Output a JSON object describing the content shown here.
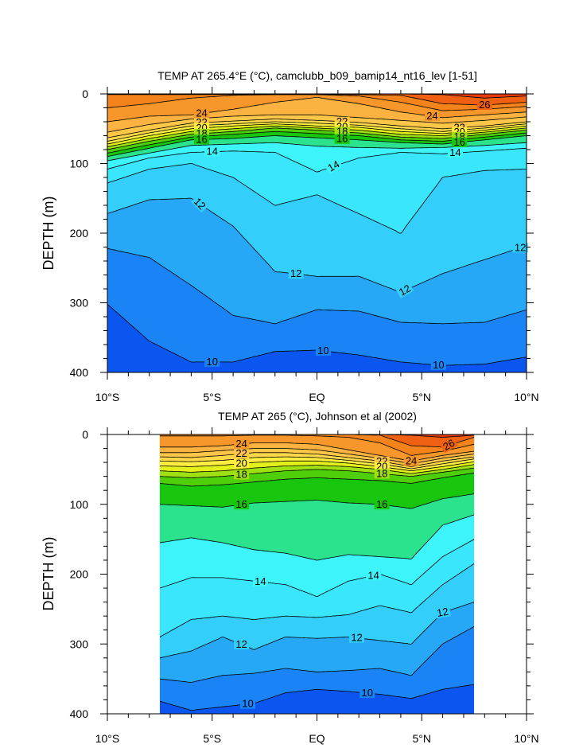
{
  "chart_data": [
    {
      "type": "contour",
      "title": "TEMP AT 265.4°E (°C), camclubb_b09_bamip14_nt16_lev [1-51]",
      "ylabel": "DEPTH (m)",
      "xlabel": "",
      "x_ticks": [
        "10°S",
        "5°S",
        "EQ",
        "5°N",
        "10°N"
      ],
      "y_ticks": [
        "0",
        "100",
        "200",
        "300",
        "400"
      ],
      "xlim": [
        -10,
        10
      ],
      "ylim": [
        0,
        400
      ],
      "y_reversed": true,
      "data_x_range": [
        -10,
        10
      ],
      "contour_labels": [
        "24",
        "22",
        "20",
        "18",
        "16",
        "14",
        "22",
        "20",
        "18",
        "16",
        "24",
        "26",
        "22",
        "20",
        "18",
        "16",
        "14",
        "14",
        "12",
        "12",
        "12",
        "12",
        "10",
        "10",
        "10"
      ],
      "isotherms": [
        {
          "level": 10,
          "x": [
            -10,
            -8,
            -6,
            -4,
            -2,
            0,
            2,
            4,
            6,
            8,
            10
          ],
          "depth": [
            302,
            355,
            385,
            385,
            370,
            368,
            375,
            385,
            390,
            388,
            378
          ]
        },
        {
          "level": 11,
          "x": [
            -10,
            -8,
            -6,
            -4,
            -2,
            0,
            2,
            4,
            6,
            8,
            10
          ],
          "depth": [
            222,
            235,
            275,
            318,
            330,
            310,
            312,
            328,
            330,
            328,
            310
          ]
        },
        {
          "level": 12,
          "x": [
            -10,
            -8,
            -6,
            -4,
            -2,
            0,
            2,
            4,
            6,
            8,
            10
          ],
          "depth": [
            172,
            152,
            150,
            190,
            255,
            262,
            262,
            285,
            258,
            238,
            218
          ]
        },
        {
          "level": 13,
          "x": [
            -10,
            -8,
            -6,
            -4,
            -2,
            0,
            2,
            4,
            6,
            8,
            10
          ],
          "depth": [
            128,
            108,
            100,
            120,
            160,
            145,
            172,
            200,
            120,
            110,
            108
          ]
        },
        {
          "level": 14,
          "x": [
            -10,
            -8,
            -6,
            -4,
            -2,
            0,
            2,
            4,
            6,
            8,
            10
          ],
          "depth": [
            108,
            92,
            84,
            82,
            84,
            112,
            92,
            84,
            86,
            82,
            78
          ]
        },
        {
          "level": 15,
          "x": [
            -10,
            -8,
            -6,
            -4,
            -2,
            0,
            2,
            4,
            6,
            8,
            10
          ],
          "depth": [
            96,
            85,
            74,
            72,
            70,
            75,
            77,
            78,
            77,
            74,
            70
          ]
        },
        {
          "level": 16,
          "x": [
            -10,
            -8,
            -6,
            -4,
            -2,
            0,
            2,
            4,
            6,
            8,
            10
          ],
          "depth": [
            90,
            78,
            66,
            64,
            60,
            63,
            66,
            70,
            72,
            66,
            60
          ]
        },
        {
          "level": 17,
          "x": [
            -10,
            -8,
            -6,
            -4,
            -2,
            0,
            2,
            4,
            6,
            8,
            10
          ],
          "depth": [
            85,
            73,
            62,
            58,
            54,
            57,
            60,
            66,
            68,
            62,
            56
          ]
        },
        {
          "level": 18,
          "x": [
            -10,
            -8,
            -6,
            -4,
            -2,
            0,
            2,
            4,
            6,
            8,
            10
          ],
          "depth": [
            80,
            68,
            58,
            54,
            49,
            52,
            56,
            62,
            64,
            58,
            52
          ]
        },
        {
          "level": 19,
          "x": [
            -10,
            -8,
            -6,
            -4,
            -2,
            0,
            2,
            4,
            6,
            8,
            10
          ],
          "depth": [
            76,
            64,
            54,
            50,
            46,
            49,
            52,
            58,
            60,
            55,
            49
          ]
        },
        {
          "level": 20,
          "x": [
            -10,
            -8,
            -6,
            -4,
            -2,
            0,
            2,
            4,
            6,
            8,
            10
          ],
          "depth": [
            72,
            60,
            50,
            46,
            43,
            46,
            48,
            54,
            57,
            52,
            46
          ]
        },
        {
          "level": 21,
          "x": [
            -10,
            -8,
            -6,
            -4,
            -2,
            0,
            2,
            4,
            6,
            8,
            10
          ],
          "depth": [
            68,
            56,
            46,
            43,
            40,
            42,
            45,
            50,
            54,
            49,
            43
          ]
        },
        {
          "level": 22,
          "x": [
            -10,
            -8,
            -6,
            -4,
            -2,
            0,
            2,
            4,
            6,
            8,
            10
          ],
          "depth": [
            63,
            52,
            42,
            39,
            36,
            38,
            41,
            46,
            50,
            46,
            40
          ]
        },
        {
          "level": 23,
          "x": [
            -10,
            -8,
            -6,
            -4,
            -2,
            0,
            2,
            4,
            6,
            8,
            10
          ],
          "depth": [
            55,
            44,
            36,
            32,
            30,
            30,
            34,
            38,
            42,
            38,
            33
          ]
        },
        {
          "level": 24,
          "x": [
            -10,
            -8,
            -6,
            -4,
            -2,
            0,
            2,
            4,
            6,
            8,
            10
          ],
          "depth": [
            40,
            32,
            30,
            22,
            12,
            5,
            14,
            26,
            34,
            30,
            26
          ]
        },
        {
          "level": 25,
          "x": [
            -10,
            -8,
            -6,
            -4,
            -2,
            0,
            2,
            4,
            6,
            8,
            10
          ],
          "depth": [
            20,
            14,
            6,
            2,
            1,
            1,
            3,
            12,
            24,
            22,
            18
          ]
        },
        {
          "level": 26,
          "x": [
            -10,
            -8,
            -6,
            -4,
            -2,
            0,
            2,
            4,
            6,
            8,
            10
          ],
          "depth": [
            1,
            1,
            1,
            1,
            1,
            1,
            1,
            2,
            14,
            16,
            12
          ]
        },
        {
          "level": 27,
          "x": [
            -10,
            -8,
            -6,
            -4,
            -2,
            0,
            2,
            4,
            6,
            8,
            10
          ],
          "depth": [
            0,
            0,
            0,
            0,
            0,
            0,
            0,
            0,
            1,
            6,
            3
          ]
        }
      ]
    },
    {
      "type": "contour",
      "title": "TEMP AT 265 (°C), Johnson et al (2002)",
      "ylabel": "DEPTH (m)",
      "xlabel": "",
      "x_ticks": [
        "10°S",
        "5°S",
        "EQ",
        "5°N",
        "10°N"
      ],
      "y_ticks": [
        "0",
        "100",
        "200",
        "300",
        "400"
      ],
      "xlim": [
        -10,
        10
      ],
      "ylim": [
        0,
        400
      ],
      "y_reversed": true,
      "data_x_range": [
        -7.5,
        7.5
      ],
      "contour_labels": [
        "24",
        "22",
        "20",
        "18",
        "16",
        "22",
        "20",
        "18",
        "16",
        "24",
        "26",
        "14",
        "14",
        "12",
        "12",
        "12",
        "10",
        "10"
      ],
      "isotherms": [
        {
          "level": 10,
          "x": [
            -7.5,
            -6,
            -4.5,
            -3,
            -1.5,
            0,
            1.5,
            3,
            4.5,
            6,
            7.5
          ],
          "depth": [
            382,
            395,
            390,
            385,
            370,
            365,
            368,
            372,
            378,
            365,
            358
          ]
        },
        {
          "level": 11,
          "x": [
            -7.5,
            -6,
            -4.5,
            -3,
            -1.5,
            0,
            1.5,
            3,
            4.5,
            6,
            7.5
          ],
          "depth": [
            350,
            355,
            345,
            342,
            335,
            340,
            338,
            335,
            345,
            300,
            275
          ]
        },
        {
          "level": 12,
          "x": [
            -7.5,
            -6,
            -4.5,
            -3,
            -1.5,
            0,
            1.5,
            3,
            4.5,
            6,
            7.5
          ],
          "depth": [
            320,
            310,
            290,
            308,
            290,
            292,
            290,
            295,
            300,
            255,
            240
          ]
        },
        {
          "level": 13,
          "x": [
            -7.5,
            -6,
            -4.5,
            -3,
            -1.5,
            0,
            1.5,
            3,
            4.5,
            6,
            7.5
          ],
          "depth": [
            290,
            265,
            260,
            265,
            260,
            262,
            258,
            245,
            255,
            215,
            185
          ]
        },
        {
          "level": 14,
          "x": [
            -7.5,
            -6,
            -4.5,
            -3,
            -1.5,
            0,
            1.5,
            3,
            4.5,
            6,
            7.5
          ],
          "depth": [
            220,
            205,
            205,
            210,
            215,
            232,
            210,
            200,
            215,
            175,
            150
          ]
        },
        {
          "level": 15,
          "x": [
            -7.5,
            -6,
            -4.5,
            -3,
            -1.5,
            0,
            1.5,
            3,
            4.5,
            6,
            7.5
          ],
          "depth": [
            155,
            148,
            155,
            165,
            170,
            180,
            172,
            175,
            178,
            130,
            115
          ]
        },
        {
          "level": 16,
          "x": [
            -7.5,
            -6,
            -4.5,
            -3,
            -1.5,
            0,
            1.5,
            3,
            4.5,
            6,
            7.5
          ],
          "depth": [
            100,
            102,
            104,
            98,
            96,
            94,
            98,
            100,
            106,
            92,
            85
          ]
        },
        {
          "level": 17,
          "x": [
            -7.5,
            -6,
            -4.5,
            -3,
            -1.5,
            0,
            1.5,
            3,
            4.5,
            6,
            7.5
          ],
          "depth": [
            70,
            74,
            72,
            68,
            64,
            62,
            64,
            66,
            70,
            62,
            55
          ]
        },
        {
          "level": 18,
          "x": [
            -7.5,
            -6,
            -4.5,
            -3,
            -1.5,
            0,
            1.5,
            3,
            4.5,
            6,
            7.5
          ],
          "depth": [
            60,
            62,
            60,
            56,
            52,
            50,
            52,
            56,
            60,
            54,
            48
          ]
        },
        {
          "level": 19,
          "x": [
            -7.5,
            -6,
            -4.5,
            -3,
            -1.5,
            0,
            1.5,
            3,
            4.5,
            6,
            7.5
          ],
          "depth": [
            52,
            54,
            52,
            48,
            45,
            44,
            46,
            50,
            56,
            50,
            43
          ]
        },
        {
          "level": 20,
          "x": [
            -7.5,
            -6,
            -4.5,
            -3,
            -1.5,
            0,
            1.5,
            3,
            4.5,
            6,
            7.5
          ],
          "depth": [
            45,
            46,
            44,
            40,
            38,
            38,
            41,
            46,
            52,
            46,
            39
          ]
        },
        {
          "level": 21,
          "x": [
            -7.5,
            -6,
            -4.5,
            -3,
            -1.5,
            0,
            1.5,
            3,
            4.5,
            6,
            7.5
          ],
          "depth": [
            38,
            39,
            37,
            33,
            32,
            33,
            37,
            42,
            49,
            42,
            35
          ]
        },
        {
          "level": 22,
          "x": [
            -7.5,
            -6,
            -4.5,
            -3,
            -1.5,
            0,
            1.5,
            3,
            4.5,
            6,
            7.5
          ],
          "depth": [
            32,
            33,
            30,
            26,
            26,
            28,
            33,
            38,
            46,
            38,
            32
          ]
        },
        {
          "level": 23,
          "x": [
            -7.5,
            -6,
            -4.5,
            -3,
            -1.5,
            0,
            1.5,
            3,
            4.5,
            6,
            7.5
          ],
          "depth": [
            26,
            26,
            23,
            20,
            20,
            22,
            28,
            34,
            42,
            34,
            28
          ]
        },
        {
          "level": 24,
          "x": [
            -7.5,
            -6,
            -4.5,
            -3,
            -1.5,
            0,
            1.5,
            3,
            4.5,
            6,
            7.5
          ],
          "depth": [
            18,
            18,
            16,
            12,
            12,
            14,
            22,
            30,
            38,
            30,
            24
          ]
        },
        {
          "level": 25,
          "x": [
            -7.5,
            -6,
            -4.5,
            -3,
            -1.5,
            0,
            1.5,
            3,
            4.5,
            6,
            7.5
          ],
          "depth": [
            2,
            2,
            2,
            1,
            1,
            2,
            4,
            12,
            30,
            24,
            14
          ]
        },
        {
          "level": 26,
          "x": [
            -7.5,
            -6,
            -4.5,
            -3,
            -1.5,
            0,
            1.5,
            3,
            4.5,
            6,
            7.5
          ],
          "depth": [
            0,
            0,
            0,
            0,
            0,
            0,
            0,
            1,
            16,
            18,
            4
          ]
        },
        {
          "level": 27,
          "x": [
            -7.5,
            -6,
            -4.5,
            -3,
            -1.5,
            0,
            1.5,
            3,
            4.5,
            6,
            7.5
          ],
          "depth": [
            0,
            0,
            0,
            0,
            0,
            0,
            0,
            0,
            1,
            4,
            1
          ]
        }
      ]
    }
  ],
  "colorscale": [
    "#0b56f0",
    "#1a83f5",
    "#26a8f7",
    "#33cef9",
    "#3ae6fb",
    "#3ef4fb",
    "#2ce38d",
    "#18c60e",
    "#4fcf0a",
    "#9ee012",
    "#e4f01a",
    "#ffee40",
    "#ffd84a",
    "#ffc648",
    "#fbb241",
    "#f6962b",
    "#f3831a",
    "#ef6012",
    "#e73a10"
  ],
  "colorscale_levels": [
    9,
    10,
    11,
    12,
    13,
    14,
    15,
    16,
    17,
    18,
    19,
    20,
    21,
    22,
    23,
    24,
    25,
    26,
    27
  ]
}
